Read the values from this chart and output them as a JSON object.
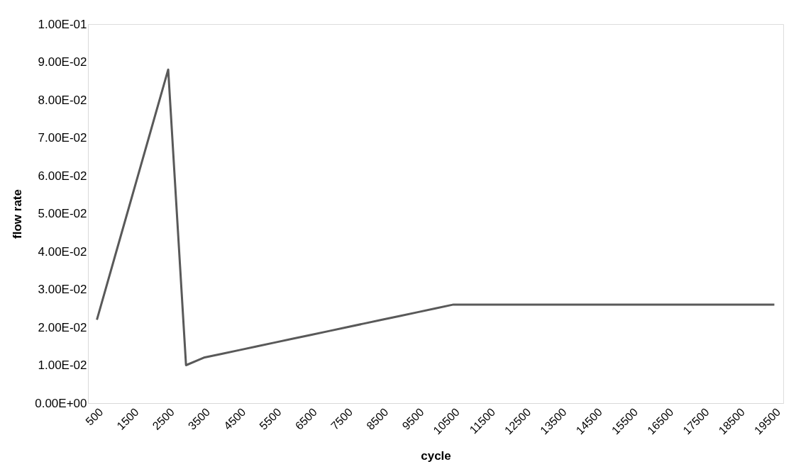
{
  "chart_data": {
    "type": "line",
    "xlabel": "cycle",
    "ylabel": "flow rate",
    "categories": [
      "500",
      null,
      "1500",
      null,
      "2500",
      null,
      "3500",
      null,
      "4500",
      null,
      "5500",
      null,
      "6500",
      null,
      "7500",
      null,
      "8500",
      null,
      "9500",
      null,
      "10500",
      null,
      "11500",
      null,
      "12500",
      null,
      "13500",
      null,
      "14500",
      null,
      "15500",
      null,
      "16500",
      null,
      "17500",
      null,
      "18500",
      null,
      "19500"
    ],
    "series": [
      {
        "color": "#595959",
        "values": [
          0.022,
          0.0385,
          0.055,
          0.0715,
          0.088,
          0.01,
          0.012,
          0.013,
          0.014,
          0.015,
          0.016,
          0.017,
          0.018,
          0.019,
          0.02,
          0.021,
          0.022,
          0.023,
          0.024,
          0.025,
          0.026,
          0.026,
          0.026,
          0.026,
          0.026,
          0.026,
          0.026,
          0.026,
          0.026,
          0.026,
          0.026,
          0.026,
          0.026,
          0.026,
          0.026,
          0.026,
          0.026,
          0.026,
          0.026
        ]
      }
    ],
    "ylim": [
      0,
      0.1
    ],
    "yticks": [
      {
        "value": 0,
        "label": "0.00E+00"
      },
      {
        "value": 0.01,
        "label": "1.00E-02"
      },
      {
        "value": 0.02,
        "label": "2.00E-02"
      },
      {
        "value": 0.03,
        "label": "3.00E-02"
      },
      {
        "value": 0.04,
        "label": "4.00E-02"
      },
      {
        "value": 0.05,
        "label": "5.00E-02"
      },
      {
        "value": 0.06,
        "label": "6.00E-02"
      },
      {
        "value": 0.07,
        "label": "7.00E-02"
      },
      {
        "value": 0.08,
        "label": "8.00E-02"
      },
      {
        "value": 0.09,
        "label": "9.00E-02"
      },
      {
        "value": 0.1,
        "label": "1.00E-01"
      }
    ],
    "grid": false
  }
}
